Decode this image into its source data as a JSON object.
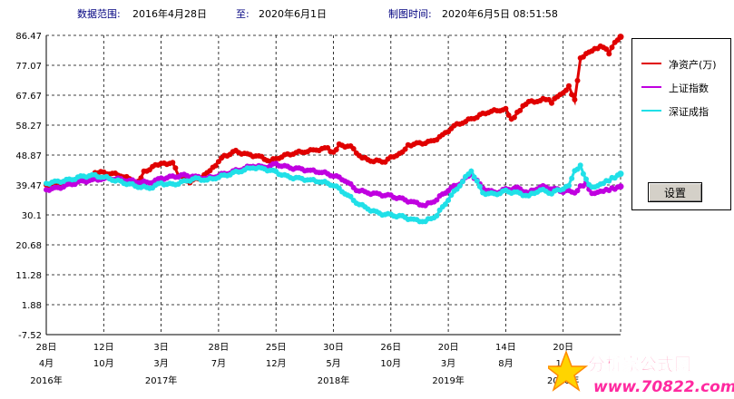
{
  "header": {
    "range_label": "数据范围:",
    "start_date": "2016年4月28日",
    "to_label": "至:",
    "end_date": "2020年6月1日",
    "made_label": "制图时间:",
    "made_time": "2020年6月5日  08:51:58"
  },
  "legend": {
    "items": [
      {
        "label": "净资产(万)",
        "color": "#e00000"
      },
      {
        "label": "上证指数",
        "color": "#c000e0"
      },
      {
        "label": "深证成指",
        "color": "#20e0e8"
      }
    ],
    "settings_label": "设置"
  },
  "watermark": {
    "line1": "分析家公式网",
    "line2": "www.70822.com"
  },
  "chart_data": {
    "type": "line",
    "y_ticks": [
      "86.47",
      "77.07",
      "67.67",
      "58.27",
      "48.87",
      "39.47",
      "30.1",
      "20.68",
      "11.28",
      "1.88",
      "-7.52"
    ],
    "ylim": [
      -7.52,
      86.47
    ],
    "grid": true,
    "legend_position": "right",
    "x_ticks": [
      {
        "day": "28日",
        "month": "4月",
        "year": "2016年"
      },
      {
        "day": "12日",
        "month": "10月",
        "year": ""
      },
      {
        "day": "3日",
        "month": "3月",
        "year": "2017年"
      },
      {
        "day": "28日",
        "month": "7月",
        "year": ""
      },
      {
        "day": "25日",
        "month": "12月",
        "year": ""
      },
      {
        "day": "30日",
        "month": "5月",
        "year": "2018年"
      },
      {
        "day": "26日",
        "month": "10月",
        "year": ""
      },
      {
        "day": "20日",
        "month": "3月",
        "year": "2019年"
      },
      {
        "day": "14日",
        "month": "8月",
        "year": ""
      },
      {
        "day": "20日",
        "month": "1月",
        "year": "2020年"
      }
    ],
    "series": [
      {
        "name": "净资产(万)",
        "color": "#e00000",
        "x": [
          0,
          2,
          4,
          6,
          7.5,
          8,
          9,
          11,
          13,
          15,
          16,
          17,
          19,
          20,
          22,
          23,
          25,
          27,
          28,
          29,
          31,
          33,
          35,
          37,
          39,
          41,
          43,
          45,
          47,
          49,
          50,
          51,
          53,
          55,
          57,
          59,
          61,
          62,
          63,
          65,
          67,
          69,
          71,
          73,
          75,
          77,
          79,
          80,
          81,
          82,
          83,
          84,
          86,
          87,
          88,
          89,
          90,
          91,
          92,
          93,
          94,
          95,
          96,
          97,
          98,
          99,
          100
        ],
        "y": [
          39.5,
          39.8,
          40.5,
          41,
          41.2,
          42.5,
          43.5,
          43.2,
          42.5,
          41,
          40.5,
          43.5,
          45.5,
          46,
          46.5,
          42.5,
          40.5,
          42,
          43.5,
          45,
          48.5,
          50,
          49,
          48.5,
          47,
          48.5,
          49.5,
          50,
          50.5,
          51,
          49.5,
          52,
          51.5,
          48,
          47,
          47,
          49,
          50,
          52,
          52.5,
          53,
          55,
          58,
          59.5,
          61,
          62.5,
          63,
          63.5,
          60,
          62,
          64,
          65.5,
          66,
          66.5,
          65.5,
          67.5,
          68.5,
          70.5,
          66,
          79,
          80.5,
          81.5,
          82.5,
          83,
          81,
          84.5,
          86
        ]
      },
      {
        "name": "上证指数",
        "color": "#c000e0",
        "x": [
          0,
          2,
          4,
          6,
          8,
          10,
          12,
          14,
          16,
          18,
          20,
          22,
          24,
          26,
          28,
          30,
          32,
          34,
          36,
          38,
          40,
          42,
          44,
          46,
          48,
          50,
          52,
          54,
          56,
          58,
          60,
          62,
          64,
          66,
          68,
          70,
          72,
          74,
          76,
          78,
          80,
          82,
          84,
          86,
          88,
          90,
          91,
          92,
          93,
          94,
          95,
          96,
          97,
          98,
          99,
          100
        ],
        "y": [
          38,
          38.5,
          39.5,
          40.5,
          41,
          41.5,
          41.5,
          41,
          40.5,
          40.2,
          41.5,
          42,
          42.5,
          42,
          41.5,
          42.5,
          43.5,
          44.5,
          45.5,
          45,
          46,
          45,
          44.5,
          44,
          43.5,
          42.5,
          41,
          38,
          37,
          36.5,
          36,
          35,
          34,
          33,
          35,
          38,
          40,
          43,
          38.5,
          37,
          38,
          38.5,
          37,
          39,
          38.5,
          37.5,
          38,
          37,
          39,
          40,
          36.5,
          37,
          37.5,
          38,
          38.5,
          39
        ]
      },
      {
        "name": "深证成指",
        "color": "#20e0e8",
        "x": [
          0,
          2,
          4,
          6,
          8,
          10,
          12,
          14,
          16,
          18,
          20,
          22,
          24,
          26,
          28,
          30,
          32,
          34,
          36,
          38,
          40,
          42,
          44,
          46,
          48,
          50,
          52,
          54,
          56,
          58,
          60,
          62,
          64,
          66,
          68,
          70,
          72,
          74,
          76,
          78,
          80,
          82,
          84,
          86,
          88,
          90,
          91,
          92,
          93,
          94,
          95,
          96,
          97,
          98,
          99,
          100
        ],
        "y": [
          40,
          40.5,
          41,
          42,
          42.5,
          42,
          41,
          40,
          39,
          38.5,
          40,
          39.5,
          40.5,
          41.5,
          41,
          42,
          43,
          44,
          45,
          44.5,
          43.5,
          42,
          41.5,
          41,
          40.5,
          39.5,
          37,
          34,
          32,
          30.5,
          30,
          29.5,
          28.5,
          28,
          30,
          35,
          39.5,
          44,
          37,
          36.5,
          37.5,
          37,
          36,
          38,
          37,
          38.5,
          39.5,
          44,
          45.5,
          41,
          38.5,
          39,
          40,
          41,
          42,
          43
        ]
      }
    ]
  }
}
